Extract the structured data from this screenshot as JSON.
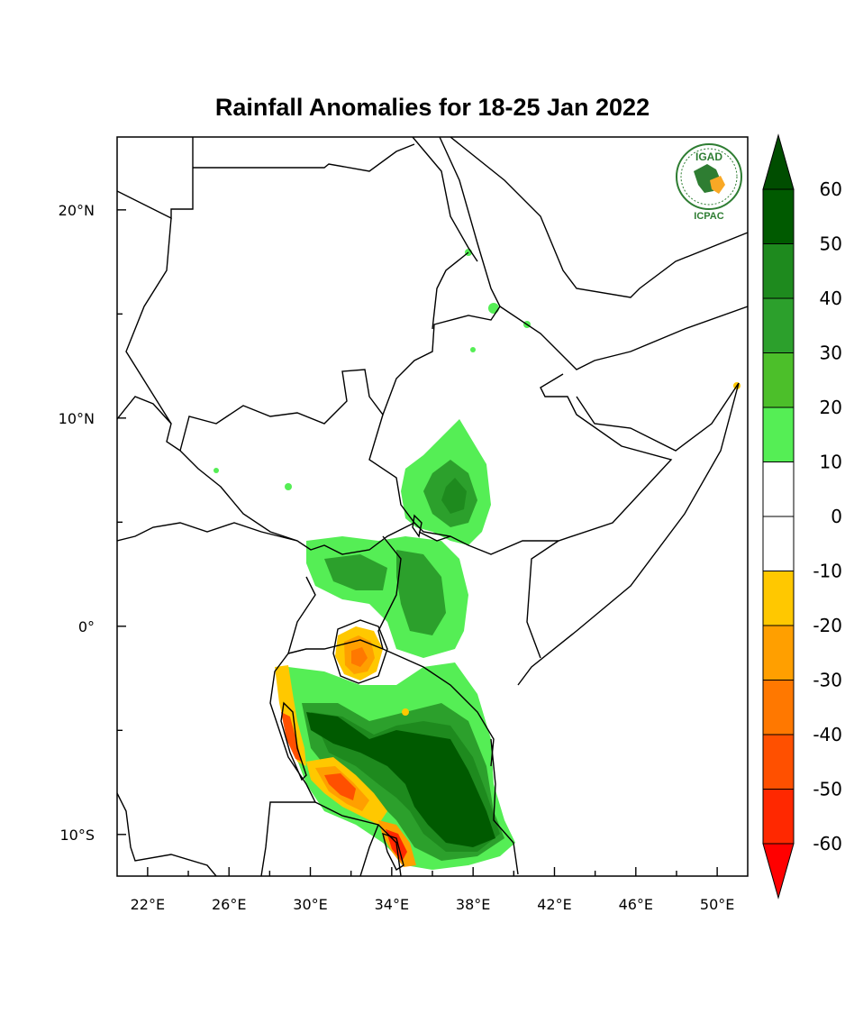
{
  "title": "Rainfall Anomalies for 18-25 Jan 2022",
  "logo": {
    "top_text": "IGAD",
    "bottom_text": "ICPAC"
  },
  "map": {
    "lon_range": [
      20.5,
      51.5
    ],
    "lat_range": [
      -12,
      23.5
    ],
    "lon_ticks": [
      {
        "value": 22,
        "label": "22°E"
      },
      {
        "value": 26,
        "label": "26°E"
      },
      {
        "value": 30,
        "label": "30°E"
      },
      {
        "value": 34,
        "label": "34°E"
      },
      {
        "value": 38,
        "label": "38°E"
      },
      {
        "value": 42,
        "label": "42°E"
      },
      {
        "value": 46,
        "label": "46°E"
      },
      {
        "value": 50,
        "label": "50°E"
      }
    ],
    "lat_ticks": [
      {
        "value": 20,
        "label": "20°N"
      },
      {
        "value": 10,
        "label": "10°N"
      },
      {
        "value": 0,
        "label": "0°"
      },
      {
        "value": -10,
        "label": "10°S"
      }
    ],
    "minor_lon_ticks": [
      24,
      28,
      32,
      36,
      40,
      44,
      48
    ],
    "minor_lat_ticks": [
      15,
      5,
      -5
    ]
  },
  "colorbar": {
    "levels": [
      "60",
      "50",
      "40",
      "30",
      "20",
      "10",
      "0",
      "-10",
      "-20",
      "-30",
      "-40",
      "-50",
      "-60"
    ],
    "colors": [
      "#005a00",
      "#1e8a1e",
      "#2ca02c",
      "#4cbf2a",
      "#55ee55",
      "#ffffff",
      "#ffffff",
      "#ffc800",
      "#ff9f00",
      "#ff7800",
      "#ff5000",
      "#ff2800"
    ],
    "top_arrow_color": "#004d00",
    "bottom_arrow_color": "#ff0000"
  }
}
